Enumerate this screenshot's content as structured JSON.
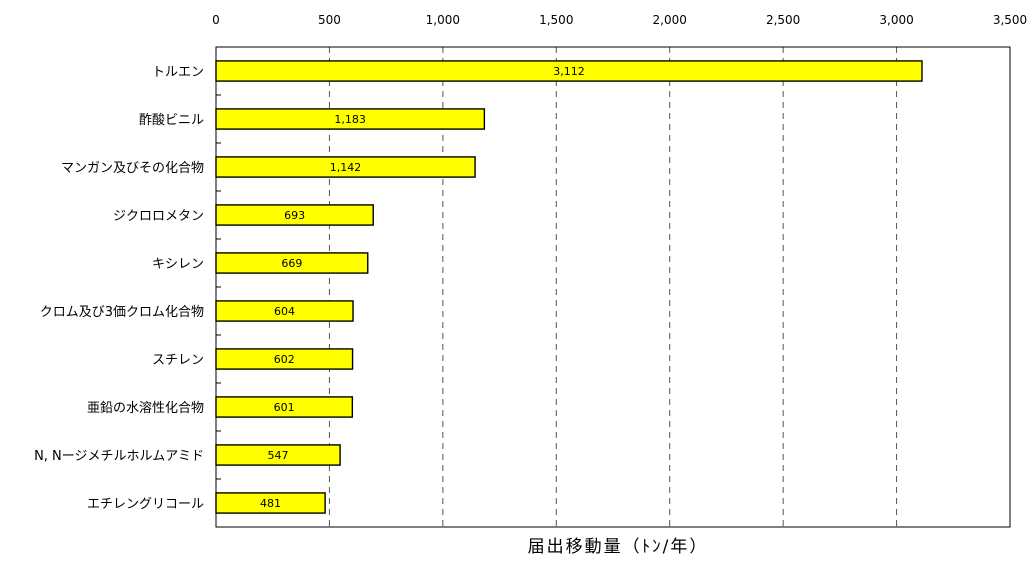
{
  "chart_data": {
    "type": "bar",
    "orientation": "horizontal",
    "categories": [
      "トルエン",
      "酢酸ビニル",
      "マンガン及びその化合物",
      "ジクロロメタン",
      "キシレン",
      "クロム及び3価クロム化合物",
      "スチレン",
      "亜鉛の水溶性化合物",
      "N, Nージメチルホルムアミド",
      "エチレングリコール"
    ],
    "values": [
      3112,
      1183,
      1142,
      693,
      669,
      604,
      602,
      601,
      547,
      481
    ],
    "value_labels": [
      "3,112",
      "1,183",
      "1,142",
      "693",
      "669",
      "604",
      "602",
      "601",
      "547",
      "481"
    ],
    "xlim": [
      0,
      3500
    ],
    "xticks": [
      0,
      500,
      1000,
      1500,
      2000,
      2500,
      3000,
      3500
    ],
    "xtick_labels": [
      "0",
      "500",
      "1,000",
      "1,500",
      "2,000",
      "2,500",
      "3,000",
      "3,500"
    ],
    "xlabel": "届出移動量（ﾄﾝ/年）",
    "grid": "vertical dashed",
    "x_axis_position": "top",
    "bar_color": "#ffff00",
    "bar_edge_color": "#000000",
    "gridline_color": "#555555"
  }
}
